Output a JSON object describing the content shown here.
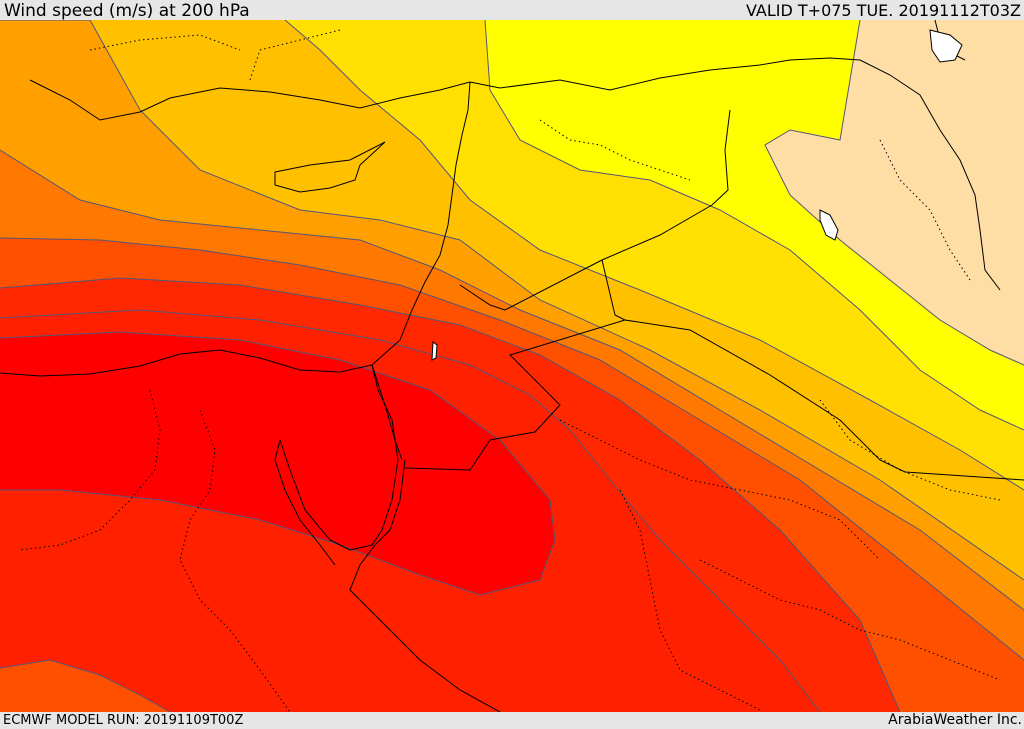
{
  "header": {
    "title": "Wind speed (m/s) at 200 hPa",
    "valid": "VALID T+075 TUE. 20191112T03Z"
  },
  "footer": {
    "model_run": "ECMWF MODEL RUN: 20191109T00Z",
    "credit": "ArabiaWeather Inc."
  },
  "map": {
    "variable": "wind speed at 200 hPa",
    "fill_colors": {
      "lightest": "#ffdea6",
      "yellow": "#ffff00",
      "gold": "#ffe000",
      "amber": "#ffc000",
      "orange": "#ffa000",
      "dark_orange": "#ff7800",
      "orange_red": "#ff5000",
      "red_orange": "#ff2800",
      "red_core": "#ff0000"
    },
    "contour_color": "#555577",
    "border_color": "#000000",
    "admin_border_style": "dotted"
  }
}
